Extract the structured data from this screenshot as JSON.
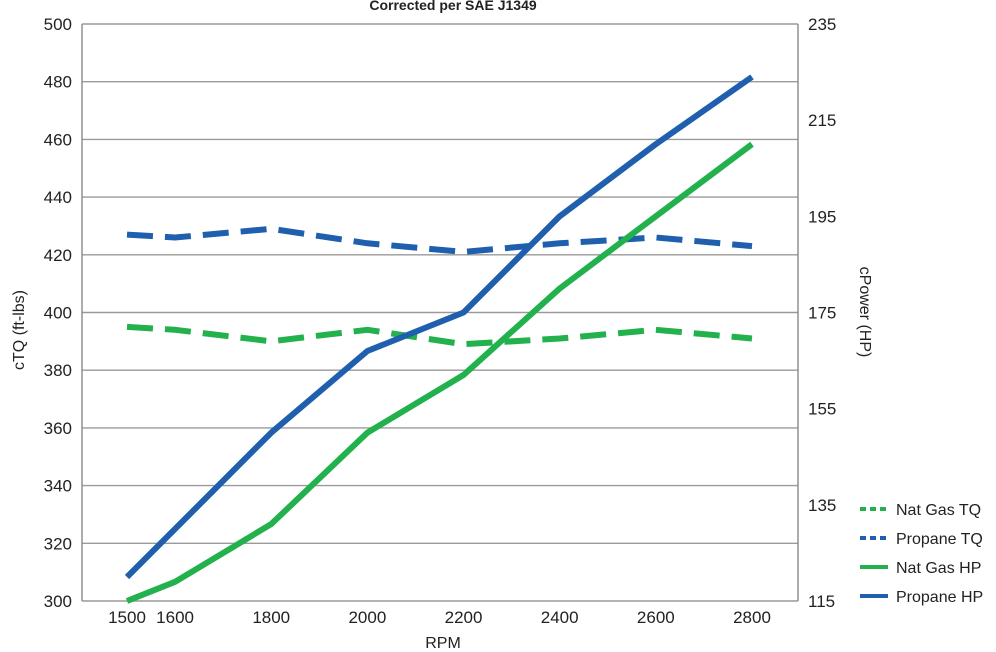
{
  "chart_data": {
    "type": "line",
    "subtitle": "Corrected per SAE J1349",
    "xlabel": "RPM",
    "ylabel_left": "cTQ (ft-lbs)",
    "ylabel_right": "cPower (HP)",
    "x": [
      1500,
      1600,
      1800,
      2000,
      2200,
      2400,
      2600,
      2800
    ],
    "x_ticks": [
      "1500",
      "1600",
      "1800",
      "2000",
      "2200",
      "2400",
      "2600",
      "2800"
    ],
    "ylim_left": [
      300,
      500
    ],
    "ylim_right": [
      115,
      235
    ],
    "y_ticks_left": [
      "300",
      "320",
      "340",
      "360",
      "380",
      "400",
      "420",
      "440",
      "460",
      "480",
      "500"
    ],
    "y_ticks_right": [
      "115",
      "135",
      "155",
      "175",
      "195",
      "215",
      "235"
    ],
    "grid": "horizontal",
    "legend_position": "bottom-right",
    "series": [
      {
        "name": "Nat Gas TQ",
        "axis": "left",
        "style": "dashed",
        "color": "#22b14c",
        "values": [
          395,
          394,
          390,
          394,
          389,
          391,
          394,
          391
        ]
      },
      {
        "name": "Propane TQ",
        "axis": "left",
        "style": "dashed",
        "color": "#1f5fae",
        "values": [
          427,
          426,
          429,
          424,
          421,
          424,
          426,
          423
        ]
      },
      {
        "name": "Nat Gas HP",
        "axis": "right",
        "style": "solid",
        "color": "#22b14c",
        "values": [
          115,
          119,
          131,
          150,
          162,
          180,
          195,
          210
        ]
      },
      {
        "name": "Propane HP",
        "axis": "right",
        "style": "solid",
        "color": "#1f5fae",
        "values": [
          120,
          130,
          150,
          167,
          175,
          195,
          210,
          224
        ]
      }
    ]
  }
}
